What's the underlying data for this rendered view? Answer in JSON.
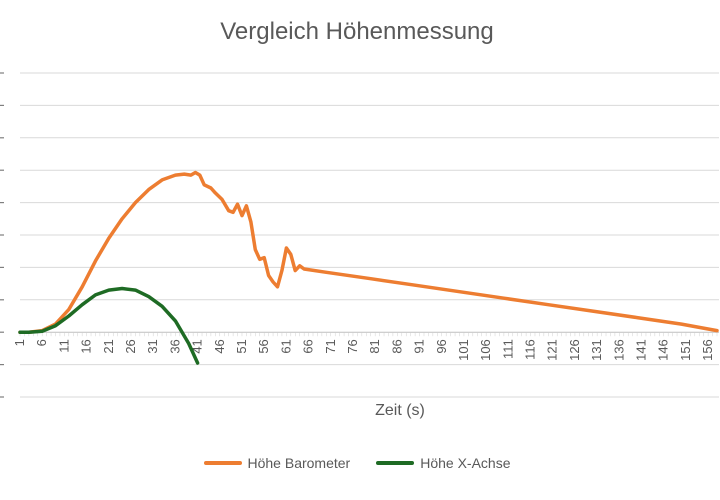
{
  "chart_data": {
    "type": "line",
    "title": "Vergleich Höhenmessung",
    "xlabel": "Zeit (s)",
    "ylabel": "",
    "x_tick_labels": [
      "1",
      "6",
      "11",
      "16",
      "21",
      "26",
      "31",
      "36",
      "41",
      "46",
      "51",
      "56",
      "61",
      "66",
      "71",
      "76",
      "81",
      "86",
      "91",
      "96",
      "101",
      "106",
      "111",
      "116",
      "121",
      "126",
      "131",
      "136",
      "141",
      "146",
      "151",
      "156"
    ],
    "grid": true,
    "legend_position": "bottom",
    "xlim": [
      1,
      158
    ],
    "ylim": [
      -2,
      8
    ],
    "series": [
      {
        "name": "Höhe Barometer",
        "color": "#ED7D31",
        "points": [
          [
            1,
            0
          ],
          [
            3,
            0
          ],
          [
            6,
            0.05
          ],
          [
            9,
            0.25
          ],
          [
            12,
            0.7
          ],
          [
            15,
            1.4
          ],
          [
            18,
            2.2
          ],
          [
            21,
            2.9
          ],
          [
            24,
            3.5
          ],
          [
            27,
            4
          ],
          [
            30,
            4.4
          ],
          [
            33,
            4.7
          ],
          [
            36,
            4.85
          ],
          [
            38,
            4.88
          ],
          [
            39.5,
            4.85
          ],
          [
            40.5,
            4.93
          ],
          [
            41.5,
            4.85
          ],
          [
            42.5,
            4.55
          ],
          [
            44,
            4.45
          ],
          [
            45,
            4.3
          ],
          [
            46.5,
            4.1
          ],
          [
            48,
            3.75
          ],
          [
            49,
            3.7
          ],
          [
            50,
            3.95
          ],
          [
            51,
            3.6
          ],
          [
            52,
            3.9
          ],
          [
            53,
            3.4
          ],
          [
            54,
            2.55
          ],
          [
            55,
            2.25
          ],
          [
            56,
            2.3
          ],
          [
            57,
            1.75
          ],
          [
            58,
            1.55
          ],
          [
            59,
            1.4
          ],
          [
            60,
            1.9
          ],
          [
            61,
            2.6
          ],
          [
            62,
            2.4
          ],
          [
            63,
            1.9
          ],
          [
            64,
            2.05
          ],
          [
            65,
            1.95
          ],
          [
            70,
            1.85
          ],
          [
            80,
            1.65
          ],
          [
            90,
            1.45
          ],
          [
            100,
            1.25
          ],
          [
            110,
            1.05
          ],
          [
            120,
            0.85
          ],
          [
            130,
            0.65
          ],
          [
            140,
            0.45
          ],
          [
            150,
            0.25
          ],
          [
            158,
            0.05
          ]
        ]
      },
      {
        "name": "Höhe X-Achse",
        "color": "#1E6B24",
        "points": [
          [
            1,
            0
          ],
          [
            3,
            0
          ],
          [
            6,
            0.03
          ],
          [
            9,
            0.2
          ],
          [
            12,
            0.5
          ],
          [
            15,
            0.85
          ],
          [
            18,
            1.15
          ],
          [
            21,
            1.3
          ],
          [
            24,
            1.35
          ],
          [
            27,
            1.3
          ],
          [
            30,
            1.1
          ],
          [
            33,
            0.8
          ],
          [
            36,
            0.35
          ],
          [
            39,
            -0.35
          ],
          [
            41,
            -0.95
          ]
        ]
      }
    ]
  }
}
